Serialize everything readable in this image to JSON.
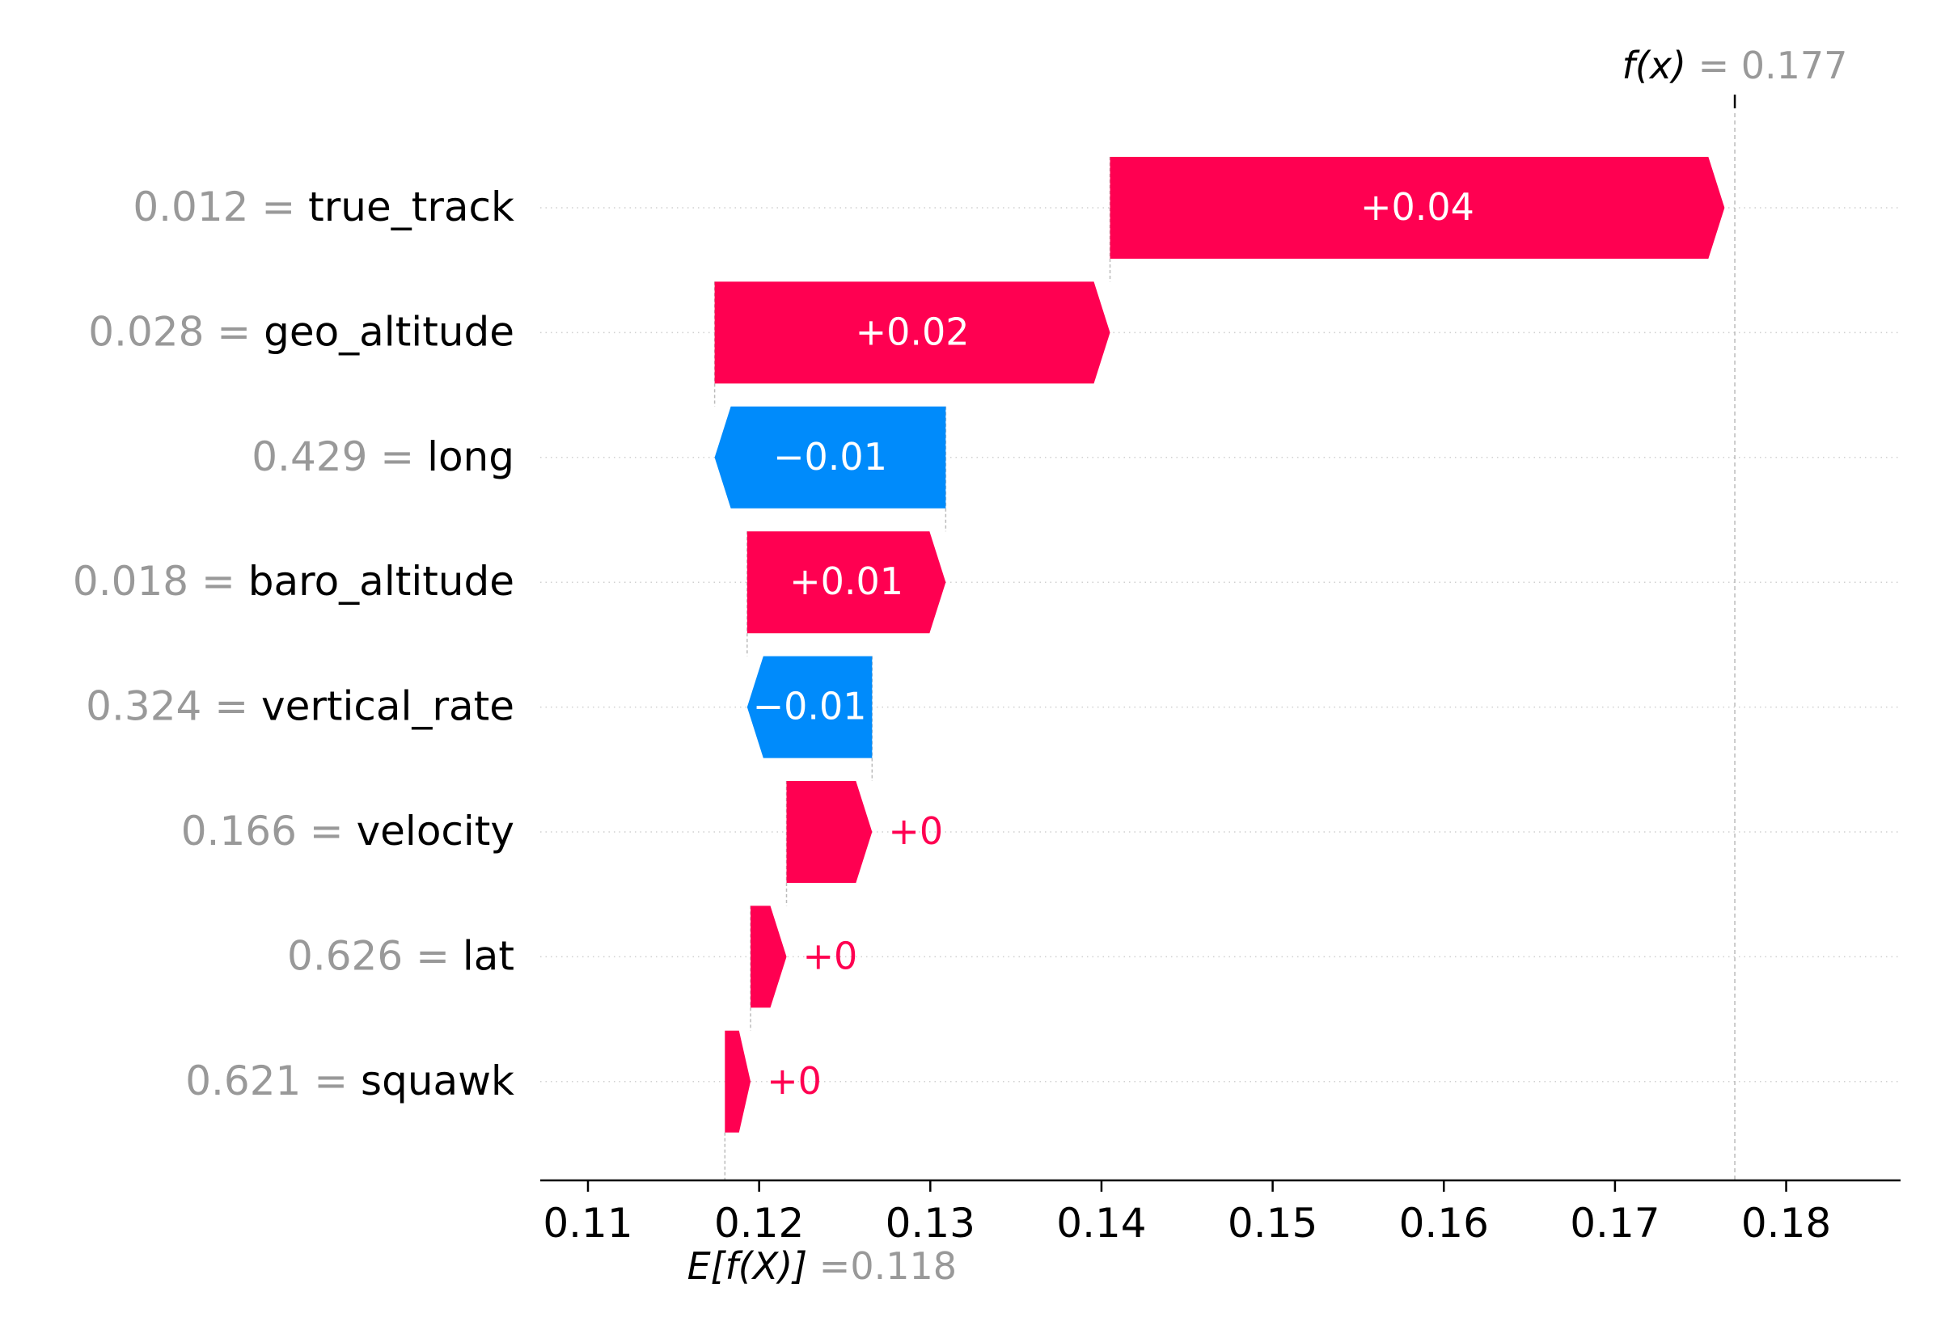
{
  "chart_data": {
    "type": "bar",
    "subtype": "shap-waterfall",
    "base_value": 0.118,
    "output_value": 0.177,
    "base_label": {
      "prefix": "E[f(X)]",
      "equals": "=",
      "value": "0.118"
    },
    "output_label": {
      "prefix": "f(x)",
      "equals": "=",
      "value": "0.177"
    },
    "features": [
      {
        "name": "true_track",
        "value_label": "0.012",
        "contribution": 0.0359,
        "label": "+0.04"
      },
      {
        "name": "geo_altitude",
        "value_label": "0.028",
        "contribution": 0.0231,
        "label": "+0.02"
      },
      {
        "name": "long",
        "value_label": "0.429",
        "contribution": -0.0135,
        "label": "−0.01"
      },
      {
        "name": "baro_altitude",
        "value_label": "0.018",
        "contribution": 0.0116,
        "label": "+0.01"
      },
      {
        "name": "vertical_rate",
        "value_label": "0.324",
        "contribution": -0.0073,
        "label": "−0.01"
      },
      {
        "name": "velocity",
        "value_label": "0.166",
        "contribution": 0.005,
        "label": "+0"
      },
      {
        "name": "lat",
        "value_label": "0.626",
        "contribution": 0.0021,
        "label": "+0"
      },
      {
        "name": "squawk",
        "value_label": "0.621",
        "contribution": 0.0015,
        "label": "+0"
      }
    ],
    "xlim": [
      0.107,
      0.1865
    ],
    "xticks": [
      0.11,
      0.12,
      0.13,
      0.14,
      0.15,
      0.16,
      0.17,
      0.18
    ],
    "xtick_labels": [
      "0.11",
      "0.12",
      "0.13",
      "0.14",
      "0.15",
      "0.16",
      "0.17",
      "0.18"
    ],
    "colors": {
      "positive": "#ff0051",
      "negative": "#008bfb",
      "value_gray": "#999999",
      "text": "#000000"
    },
    "grid": "horizontal-dotted"
  }
}
